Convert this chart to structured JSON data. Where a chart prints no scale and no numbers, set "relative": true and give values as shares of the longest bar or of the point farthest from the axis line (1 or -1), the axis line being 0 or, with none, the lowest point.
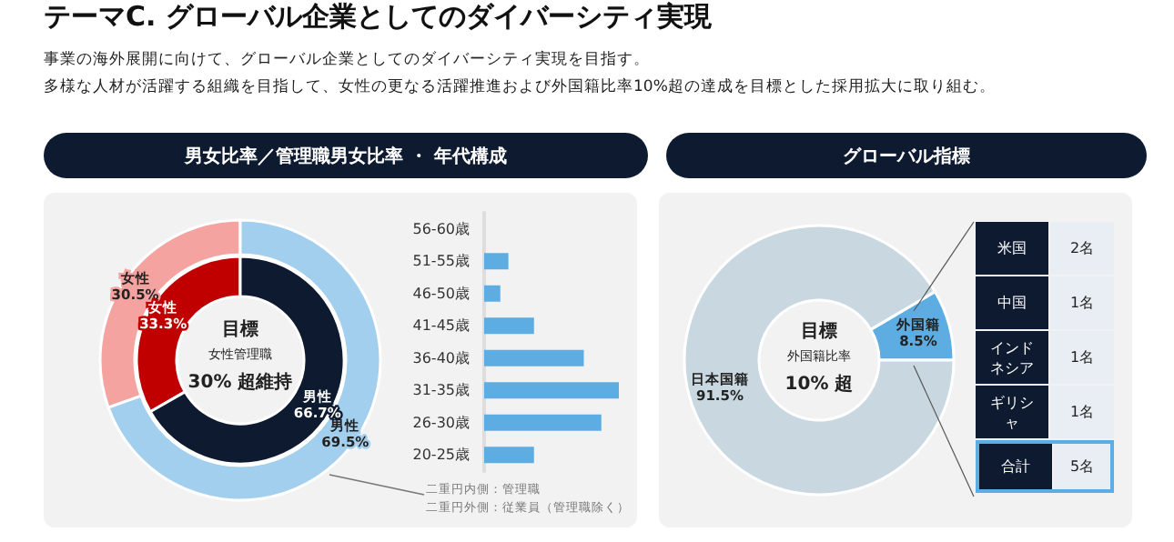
{
  "chart_data": [
    {
      "type": "donut",
      "title": "テーマC. グローバル企業としてのダイバーシティ実現",
      "subtitle": "事業の海外展開に向けて、グローバル企業としてのダイバーシティ実現を目指す。",
      "categories": [
        "女性",
        "男性"
      ],
      "series": [
        {
          "values": [
            30.5,
            69.5
          ],
          "colors": [
            "#f4a3a0",
            "#a3cfef"
          ],
          "value_labels": [
            "30.5%",
            "69.5%"
          ]
        },
        {
          "values": [
            33.3,
            66.7
          ],
          "colors": [
            "#c00000",
            "#0e1a30"
          ],
          "value_labels": [
            "33.3%",
            "66.7%"
          ]
        }
      ],
      "annotations": [
        "多様な人材が活躍する組織を目指して、女性の更なる活躍推進および外国籍比率10%超の達成を目標とした採用拡大に取り組む。",
        "男女比率／管理職男女比率 ・ 年代構成",
        "目標",
        "女性管理職",
        "30% 超維持",
        "二重円内側：管理職",
        "二重円外側：従業員（管理職除く）"
      ]
    },
    {
      "type": "bar",
      "orientation": "horizontal",
      "relative": true,
      "categories": [
        "56-60歳",
        "51-55歳",
        "46-50歳",
        "41-45歳",
        "36-40歳",
        "31-35歳",
        "26-30歳",
        "20-25歳"
      ],
      "values": [
        0,
        0.18,
        0.12,
        0.37,
        0.74,
        1,
        0.87,
        0.37
      ],
      "color": "#5dade2"
    },
    {
      "type": "donut",
      "title": "グローバル指標",
      "categories": [
        "外国籍",
        "日本国籍"
      ],
      "values": [
        8.5,
        91.5
      ],
      "colors": [
        "#5dade2",
        "#c9d8e0"
      ],
      "value_labels": [
        "8.5%",
        "91.5%"
      ],
      "annotations": [
        "目標",
        "外国籍比率",
        "10% 超"
      ]
    },
    {
      "type": "other",
      "categories": [
        "米国",
        "中国",
        "インドネシア",
        "ギリシャ",
        "合計"
      ],
      "value_labels": [
        "2名",
        "1名",
        "1名",
        "1名",
        "5名"
      ]
    }
  ]
}
